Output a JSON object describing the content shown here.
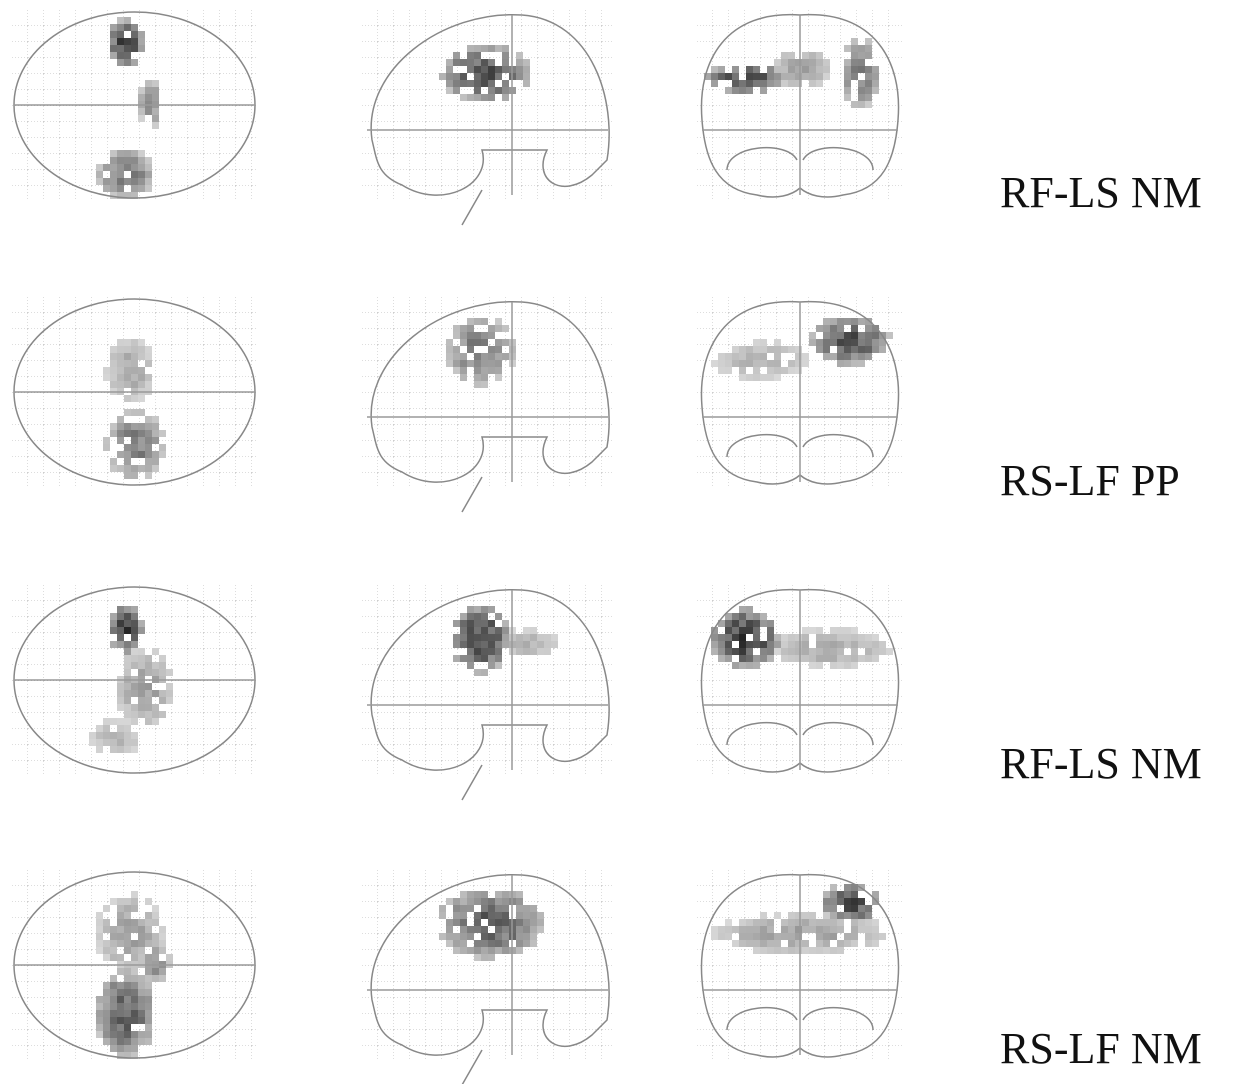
{
  "rows": [
    {
      "label": "RF-LS NM"
    },
    {
      "label": "RS-LF PP"
    },
    {
      "label": "RF-LS NM"
    },
    {
      "label": "RS-LF NM"
    }
  ]
}
